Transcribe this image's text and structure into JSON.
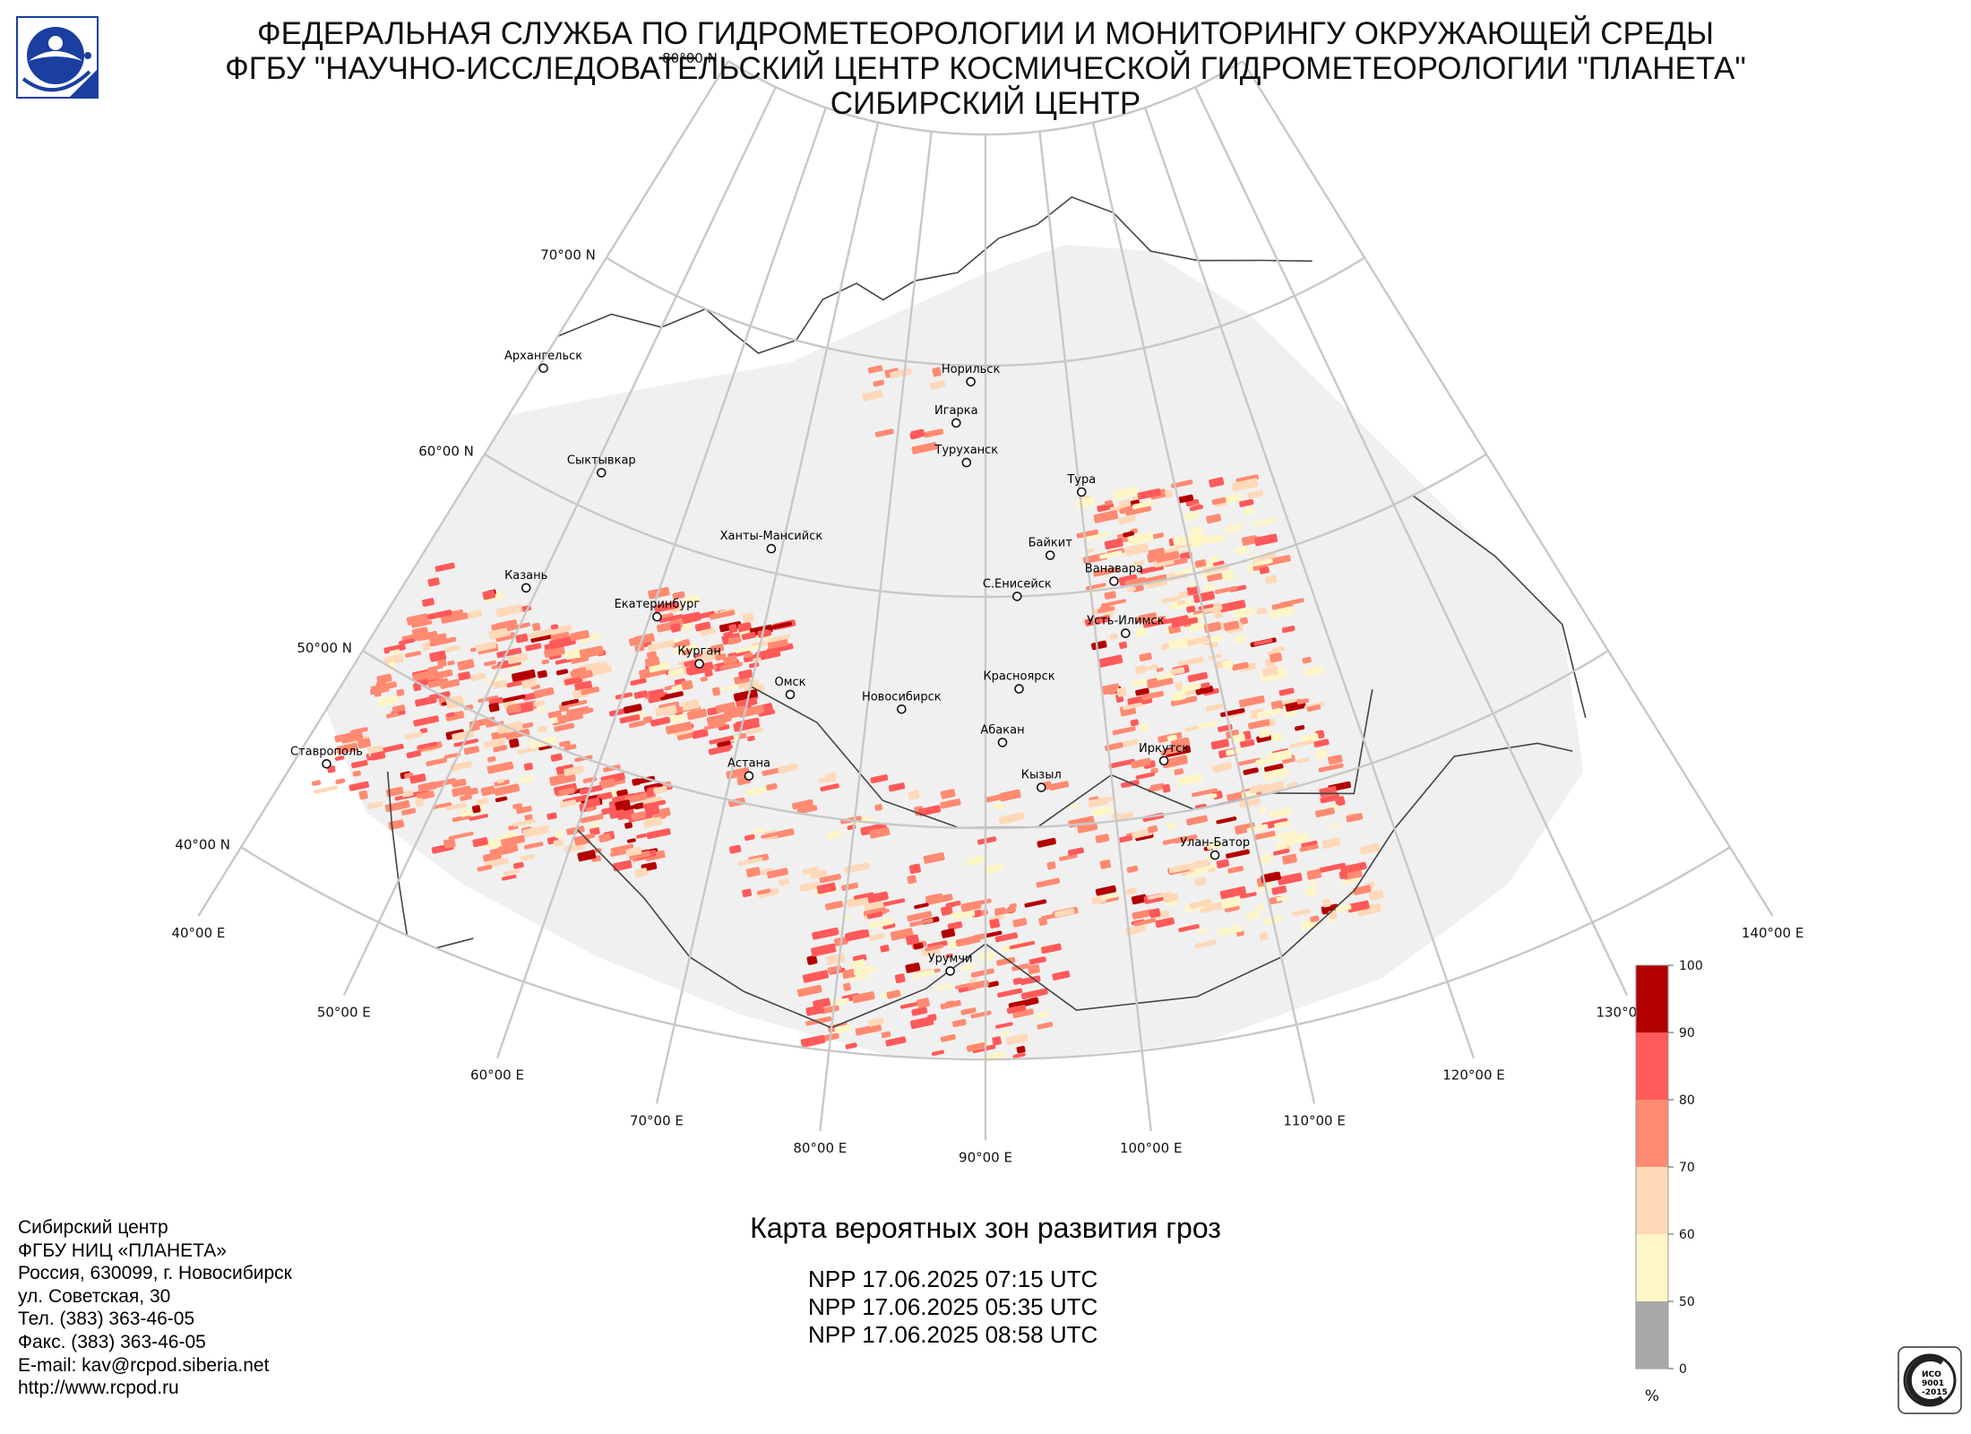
{
  "header": {
    "line1": "ФЕДЕРАЛЬНАЯ СЛУЖБА ПО ГИДРОМЕТЕОРОЛОГИИ И МОНИТОРИНГУ ОКРУЖАЮЩЕЙ СРЕДЫ",
    "line2": "ФГБУ \"НАУЧНО-ИССЛЕДОВАТЕЛЬСКИЙ ЦЕНТР КОСМИЧЕСКОЙ ГИДРОМЕТЕОРОЛОГИИ \"ПЛАНЕТА\"",
    "line3": "СИБИРСКИЙ ЦЕНТР"
  },
  "latitude_labels": [
    {
      "lat": 80,
      "text": "80°00 N"
    },
    {
      "lat": 70,
      "text": "70°00 N"
    },
    {
      "lat": 60,
      "text": "60°00 N"
    },
    {
      "lat": 50,
      "text": "50°00 N"
    },
    {
      "lat": 40,
      "text": "40°00 N"
    }
  ],
  "longitude_labels": [
    {
      "lon": 40,
      "text": "40°00 E"
    },
    {
      "lon": 50,
      "text": "50°00 E"
    },
    {
      "lon": 60,
      "text": "60°00 E"
    },
    {
      "lon": 70,
      "text": "70°00 E"
    },
    {
      "lon": 80,
      "text": "80°00 E"
    },
    {
      "lon": 90,
      "text": "90°00 E"
    },
    {
      "lon": 100,
      "text": "100°00 E"
    },
    {
      "lon": 110,
      "text": "110°00 E"
    },
    {
      "lon": 120,
      "text": "120°00 E"
    },
    {
      "lon": 130,
      "text": "130°00 E"
    },
    {
      "lon": 140,
      "text": "140°00 E"
    }
  ],
  "cities": [
    {
      "name": "Архангельск",
      "lon": 40.5,
      "lat": 64.5
    },
    {
      "name": "Сыктывкар",
      "lon": 50.8,
      "lat": 61.7
    },
    {
      "name": "Казань",
      "lon": 49.1,
      "lat": 55.8
    },
    {
      "name": "Ставрополь",
      "lon": 42.0,
      "lat": 45.0
    },
    {
      "name": "Екатеринбург",
      "lon": 60.6,
      "lat": 56.8
    },
    {
      "name": "Ханты-Мансийск",
      "lon": 69.0,
      "lat": 61.0
    },
    {
      "name": "Курган",
      "lon": 65.3,
      "lat": 55.4
    },
    {
      "name": "Омск",
      "lon": 73.4,
      "lat": 55.0
    },
    {
      "name": "Астана",
      "lon": 71.4,
      "lat": 51.2
    },
    {
      "name": "Новосибирск",
      "lon": 82.9,
      "lat": 55.0
    },
    {
      "name": "Норильск",
      "lon": 88.2,
      "lat": 69.3
    },
    {
      "name": "Игарка",
      "lon": 86.6,
      "lat": 67.5
    },
    {
      "name": "Туруханск",
      "lon": 87.9,
      "lat": 65.8
    },
    {
      "name": "Тура",
      "lon": 100.2,
      "lat": 64.3
    },
    {
      "name": "Байкит",
      "lon": 96.4,
      "lat": 61.7
    },
    {
      "name": "Ванавара",
      "lon": 102.3,
      "lat": 60.3
    },
    {
      "name": "С.Енисейск",
      "lon": 93.0,
      "lat": 60.0
    },
    {
      "name": "Усть-Илимск",
      "lon": 102.7,
      "lat": 58.0
    },
    {
      "name": "Красноярск",
      "lon": 92.9,
      "lat": 56.0
    },
    {
      "name": "Абакан",
      "lon": 91.4,
      "lat": 53.7
    },
    {
      "name": "Кызыл",
      "lon": 94.4,
      "lat": 51.7
    },
    {
      "name": "Иркутск",
      "lon": 104.3,
      "lat": 52.3
    },
    {
      "name": "Улан-Батор",
      "lon": 106.9,
      "lat": 47.9
    },
    {
      "name": "Урумчи",
      "lon": 87.6,
      "lat": 43.8
    }
  ],
  "legend": {
    "ticks": [
      "100",
      "90",
      "80",
      "70",
      "60",
      "50",
      "0"
    ],
    "unit": "%",
    "colors": [
      "#b30000",
      "#ff5a5a",
      "#ff8a72",
      "#ffd9b8",
      "#fff6c8",
      "#a8a8a8"
    ]
  },
  "footer_left": [
    "Сибирский центр",
    "ФГБУ НИЦ «ПЛАНЕТА»",
    "Россия, 630099, г. Новосибирск",
    "ул. Советская, 30",
    "Тел. (383) 363-46-05",
    "Факс. (383) 363-46-05",
    "E-mail: kav@rcpod.siberia.net",
    "http://www.rcpod.ru"
  ],
  "caption": "Карта вероятных зон развития гроз",
  "passes": [
    "NPP 17.06.2025  07:15 UTC",
    "NPP 17.06.2025  05:35 UTC",
    "NPP 17.06.2025  08:58 UTC"
  ],
  "iso_badge": {
    "line1": "ИСО",
    "line2": "9001",
    "line3": "-2015"
  },
  "colors": {
    "grid": "#c8c8c8",
    "coverage": "#f0f0f0",
    "coast": "#444444"
  }
}
